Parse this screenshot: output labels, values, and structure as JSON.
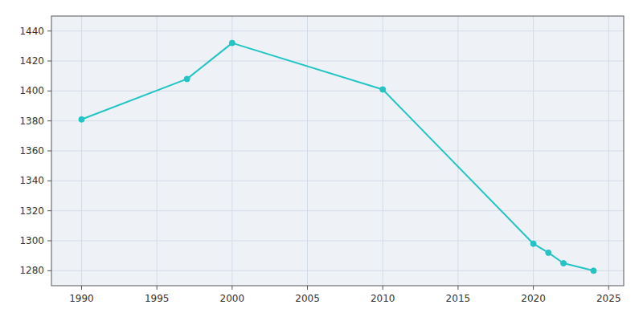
{
  "chart_data": {
    "type": "line",
    "x": [
      1990,
      1997,
      2000,
      2010,
      2020,
      2021,
      2022,
      2024
    ],
    "values": [
      1381,
      1408,
      1432,
      1401,
      1298,
      1292,
      1285,
      1280
    ],
    "color": "#22c4c4",
    "marker": "circle",
    "xlim": [
      1988,
      2026
    ],
    "ylim": [
      1270,
      1450
    ],
    "xticks": [
      1990,
      1995,
      2000,
      2005,
      2010,
      2015,
      2020,
      2025
    ],
    "yticks": [
      1280,
      1300,
      1320,
      1340,
      1360,
      1380,
      1400,
      1420,
      1440
    ],
    "grid": true
  }
}
